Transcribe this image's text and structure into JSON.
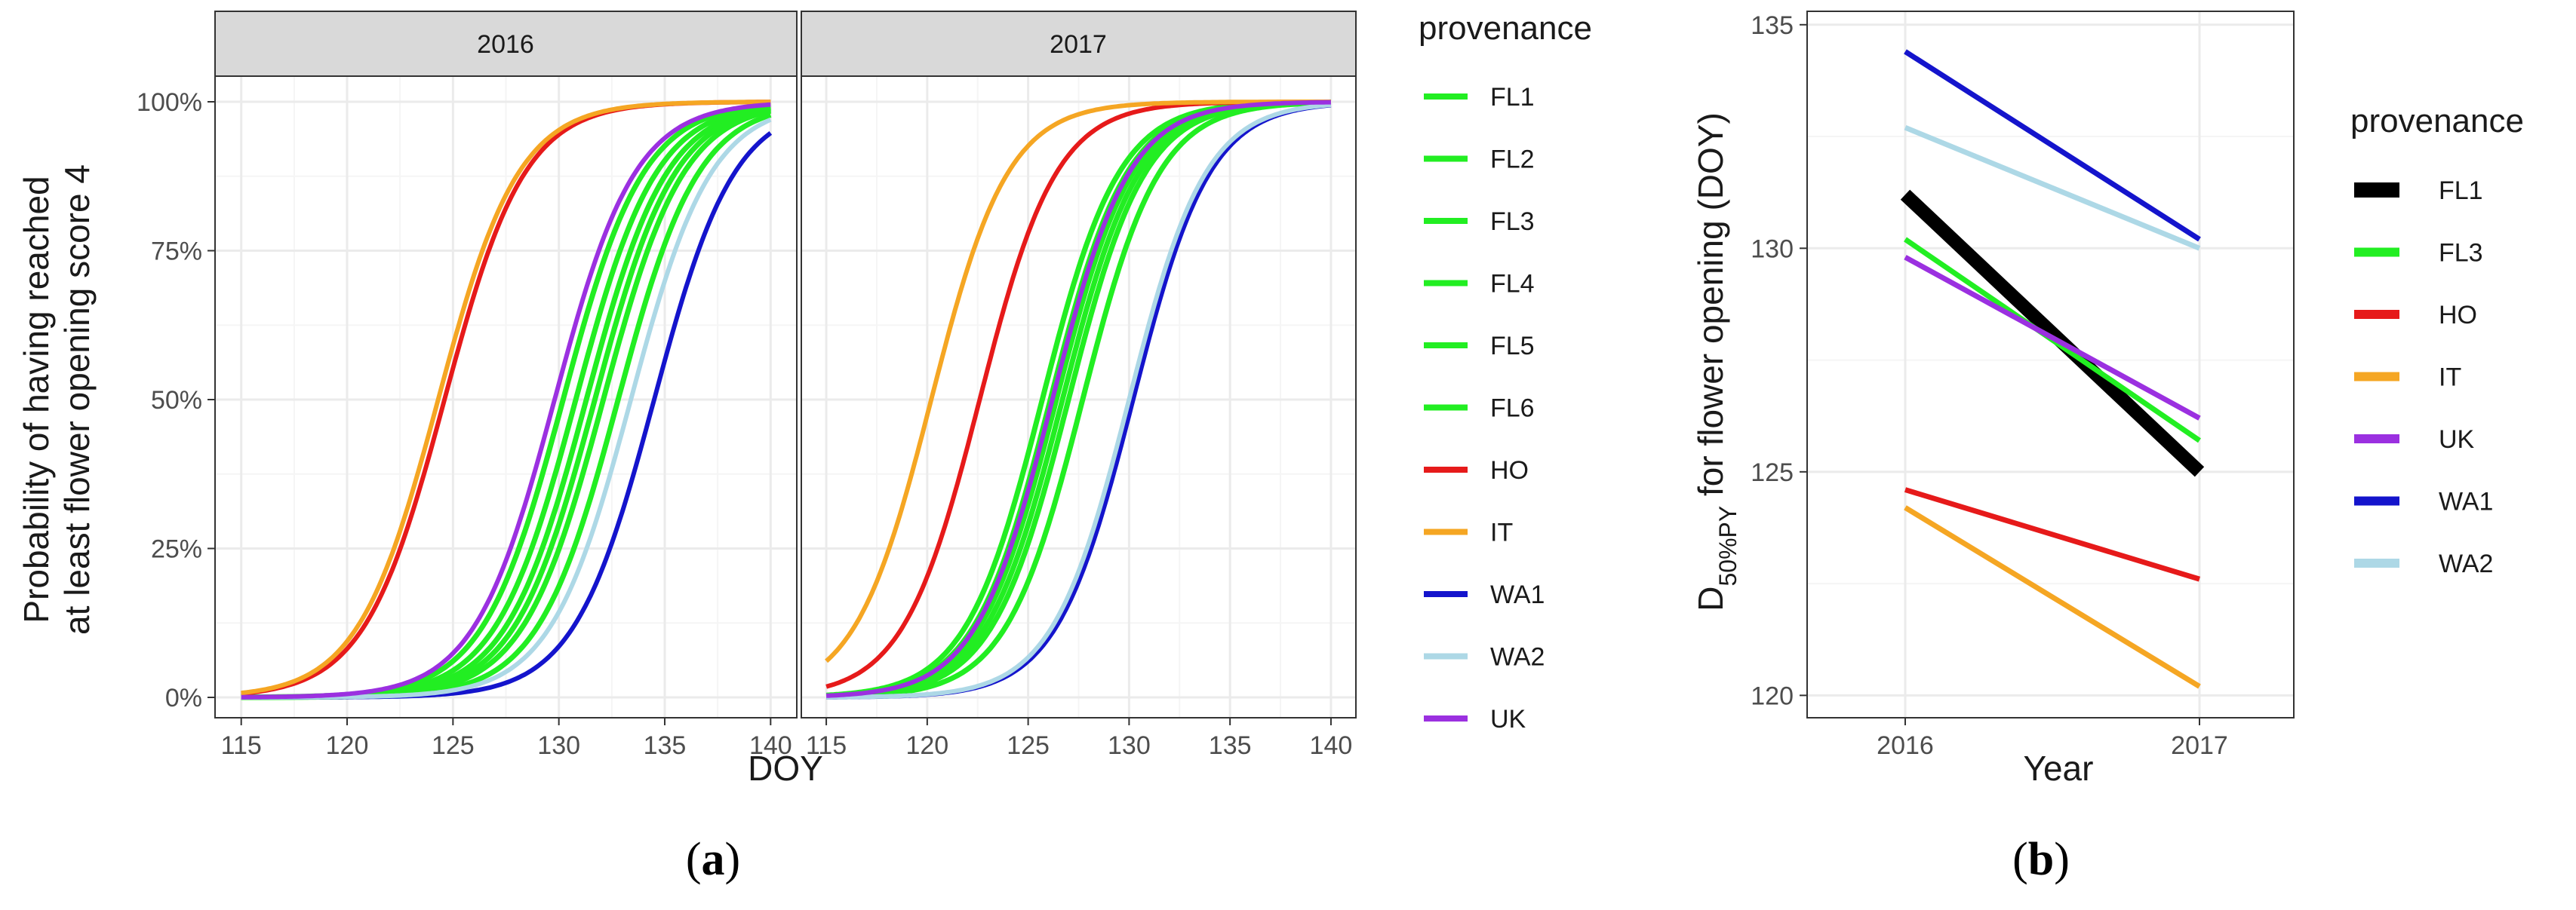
{
  "colors": {
    "FL": "#22ee22",
    "FL1_b": "#000000",
    "HO": "#e61a1a",
    "IT": "#f5a623",
    "WA1": "#1414cc",
    "WA2": "#add8e6",
    "UK": "#9b30e0",
    "strip_bg": "#d9d9d9",
    "grid_major": "#ebebeb",
    "grid_minor": "#f5f5f5",
    "panel_border": "#333333"
  },
  "panel_a": {
    "label_open": "(",
    "label_letter": "a",
    "label_close": ")",
    "facets": [
      "2016",
      "2017"
    ]
  },
  "panel_b": {
    "label_open": "(",
    "label_letter": "b",
    "label_close": ")"
  },
  "chart_data": [
    {
      "type": "line",
      "title": "",
      "facet_by": "year",
      "facets": [
        "2016",
        "2017"
      ],
      "xlabel": "DOY",
      "ylabel_line1": "Probability of having reached",
      "ylabel_line2": "at least flower opening score 4",
      "xlim": [
        115,
        140
      ],
      "ylim": [
        0,
        1
      ],
      "xticks": [
        115,
        120,
        125,
        130,
        135,
        140
      ],
      "xtick_labels": [
        "115",
        "120",
        "125",
        "130",
        "135",
        "140"
      ],
      "yticks": [
        0,
        0.25,
        0.5,
        0.75,
        1.0
      ],
      "ytick_labels": [
        "0%",
        "25%",
        "50%",
        "75%",
        "100%"
      ],
      "model": "logistic: p = 1/(1+exp(-(DOY - midpoint)/scale))",
      "legend_title": "provenance",
      "legend": [
        "FL1",
        "FL2",
        "FL3",
        "FL4",
        "FL5",
        "FL6",
        "HO",
        "IT",
        "WA1",
        "WA2",
        "UK"
      ],
      "series": [
        {
          "name": "FL1",
          "color_key": "FL",
          "midpoints": {
            "2016": 130.2,
            "2017": 125.7
          },
          "scale": 1.9
        },
        {
          "name": "FL2",
          "color_key": "FL",
          "midpoints": {
            "2016": 130.8,
            "2017": 126.1
          },
          "scale": 1.9
        },
        {
          "name": "FL3",
          "color_key": "FL",
          "midpoints": {
            "2016": 131.3,
            "2017": 126.4
          },
          "scale": 1.9
        },
        {
          "name": "FL4",
          "color_key": "FL",
          "midpoints": {
            "2016": 131.7,
            "2017": 126.7
          },
          "scale": 1.9
        },
        {
          "name": "FL5",
          "color_key": "FL",
          "midpoints": {
            "2016": 132.1,
            "2017": 127.0
          },
          "scale": 1.9
        },
        {
          "name": "FL6",
          "color_key": "FL",
          "midpoints": {
            "2016": 132.8,
            "2017": 127.7
          },
          "scale": 1.9
        },
        {
          "name": "HO",
          "color_key": "HO",
          "midpoints": {
            "2016": 124.6,
            "2017": 122.6
          },
          "scale": 1.9
        },
        {
          "name": "IT",
          "color_key": "IT",
          "midpoints": {
            "2016": 124.3,
            "2017": 120.2
          },
          "scale": 1.9
        },
        {
          "name": "WA1",
          "color_key": "WA1",
          "midpoints": {
            "2016": 134.5,
            "2017": 130.2
          },
          "scale": 1.9
        },
        {
          "name": "WA2",
          "color_key": "WA2",
          "midpoints": {
            "2016": 133.4,
            "2017": 130.0
          },
          "scale": 1.9
        },
        {
          "name": "UK",
          "color_key": "UK",
          "midpoints": {
            "2016": 129.8,
            "2017": 126.2
          },
          "scale": 1.9
        }
      ]
    },
    {
      "type": "line",
      "title": "",
      "xlabel": "Year",
      "ylabel_main": "D",
      "ylabel_sub": "50%PY",
      "ylabel_rest": " for flower opening (DOY)",
      "categories": [
        "2016",
        "2017"
      ],
      "ylim": [
        119.5,
        135.3
      ],
      "yticks": [
        120,
        125,
        130,
        135
      ],
      "ytick_labels": [
        "120",
        "125",
        "130",
        "135"
      ],
      "legend_title": "provenance",
      "legend": [
        "FL1",
        "FL3",
        "HO",
        "IT",
        "UK",
        "WA1",
        "WA2"
      ],
      "series": [
        {
          "name": "FL1",
          "color_key": "FL1_b",
          "values": [
            131.2,
            125.0
          ],
          "thick": true
        },
        {
          "name": "FL3",
          "color_key": "FL",
          "values": [
            130.2,
            125.7
          ]
        },
        {
          "name": "HO",
          "color_key": "HO",
          "values": [
            124.6,
            122.6
          ]
        },
        {
          "name": "IT",
          "color_key": "IT",
          "values": [
            124.2,
            120.2
          ]
        },
        {
          "name": "UK",
          "color_key": "UK",
          "values": [
            129.8,
            126.2
          ]
        },
        {
          "name": "WA1",
          "color_key": "WA1",
          "values": [
            134.4,
            130.2
          ]
        },
        {
          "name": "WA2",
          "color_key": "WA2",
          "values": [
            132.7,
            130.0
          ]
        }
      ]
    }
  ]
}
